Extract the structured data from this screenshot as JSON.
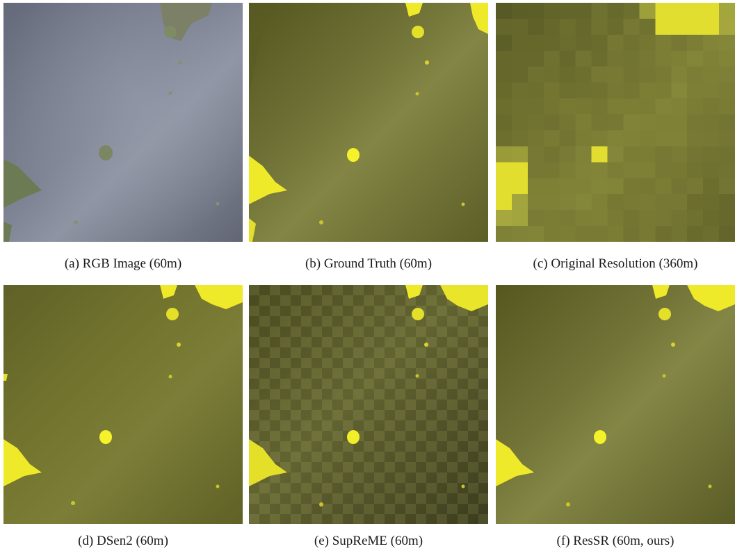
{
  "panels": [
    {
      "id": "a",
      "caption": "(a) RGB Image (60m)",
      "kind": "rgb"
    },
    {
      "id": "b",
      "caption": "(b) Ground Truth (60m)",
      "kind": "gt"
    },
    {
      "id": "c",
      "caption": "(c) Original Resolution (360m)",
      "kind": "lowres"
    },
    {
      "id": "d",
      "caption": "(d) DSen2 (60m)",
      "kind": "dsen2"
    },
    {
      "id": "e",
      "caption": "(e) SupReME (60m)",
      "kind": "supreme"
    },
    {
      "id": "f",
      "caption": "(f) ResSR (60m, ours)",
      "kind": "ressr"
    }
  ],
  "colors": {
    "rgb_water": "#6a6f7e",
    "rgb_haze": "#8c93a3",
    "rgb_land": "#6f7d5b",
    "olive_dark": "#4d4e1f",
    "olive_mid": "#6e7034",
    "olive_light": "#8a8c4c",
    "bright_yellow": "#f2ee2a"
  }
}
